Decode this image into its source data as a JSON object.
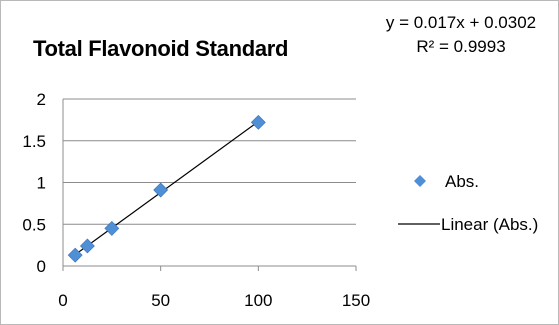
{
  "chart_data": {
    "type": "scatter",
    "title": "Total Flavonoid Standard",
    "xlim": [
      0,
      150
    ],
    "ylim": [
      0,
      2
    ],
    "x_ticks": [
      "0",
      "50",
      "100",
      "150"
    ],
    "y_ticks": [
      "0",
      "0.5",
      "1",
      "1.5",
      "2"
    ],
    "grid": "horizontal",
    "legend_position": "right",
    "series": [
      {
        "name": "Abs.",
        "marker": "diamond",
        "color": "#4f8fd6",
        "x": [
          6.25,
          12.5,
          25,
          50,
          100
        ],
        "y": [
          0.13,
          0.24,
          0.45,
          0.91,
          1.72
        ]
      }
    ],
    "trendline": {
      "name": "Linear (Abs.)",
      "color": "#000000",
      "slope": 0.017,
      "intercept": 0.0302,
      "equation": "y = 0.017x + 0.0302",
      "r_squared_label": "R² = 0.9993"
    }
  }
}
